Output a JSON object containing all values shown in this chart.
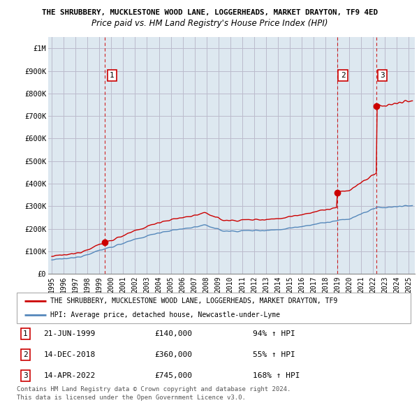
{
  "title": "THE SHRUBBERY, MUCKLESTONE WOOD LANE, LOGGERHEADS, MARKET DRAYTON, TF9 4ED",
  "subtitle": "Price paid vs. HM Land Registry's House Price Index (HPI)",
  "ylabel_ticks": [
    "£0",
    "£100K",
    "£200K",
    "£300K",
    "£400K",
    "£500K",
    "£600K",
    "£700K",
    "£800K",
    "£900K",
    "£1M"
  ],
  "ytick_values": [
    0,
    100000,
    200000,
    300000,
    400000,
    500000,
    600000,
    700000,
    800000,
    900000,
    1000000
  ],
  "ylim": [
    0,
    1050000
  ],
  "xlim_start": 1994.7,
  "xlim_end": 2025.5,
  "red_line_color": "#cc0000",
  "blue_line_color": "#5588bb",
  "dashed_line_color": "#cc0000",
  "grid_color": "#bbbbcc",
  "chart_bg_color": "#dde8f0",
  "background_color": "#ffffff",
  "sale_events": [
    {
      "year": 1999.47,
      "price": 140000,
      "label": "1"
    },
    {
      "year": 2018.96,
      "price": 360000,
      "label": "2"
    },
    {
      "year": 2022.28,
      "price": 745000,
      "label": "3"
    }
  ],
  "label_1": {
    "number": "1",
    "date": "21-JUN-1999",
    "price": "£140,000",
    "pct": "94% ↑ HPI"
  },
  "label_2": {
    "number": "2",
    "date": "14-DEC-2018",
    "price": "£360,000",
    "pct": "55% ↑ HPI"
  },
  "label_3": {
    "number": "3",
    "date": "14-APR-2022",
    "price": "£745,000",
    "pct": "168% ↑ HPI"
  },
  "legend_property": "THE SHRUBBERY, MUCKLESTONE WOOD LANE, LOGGERHEADS, MARKET DRAYTON, TF9",
  "legend_hpi": "HPI: Average price, detached house, Newcastle-under-Lyme",
  "footnote1": "Contains HM Land Registry data © Crown copyright and database right 2024.",
  "footnote2": "This data is licensed under the Open Government Licence v3.0.",
  "xticks": [
    1995,
    1996,
    1997,
    1998,
    1999,
    2000,
    2001,
    2002,
    2003,
    2004,
    2005,
    2006,
    2007,
    2008,
    2009,
    2010,
    2011,
    2012,
    2013,
    2014,
    2015,
    2016,
    2017,
    2018,
    2019,
    2020,
    2021,
    2022,
    2023,
    2024,
    2025
  ]
}
